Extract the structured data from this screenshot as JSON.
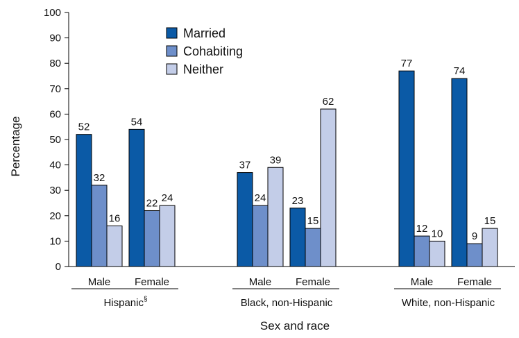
{
  "chart_data": {
    "type": "bar",
    "ylabel": "Percentage",
    "xlabel": "Sex and race",
    "ylim": [
      0,
      100
    ],
    "yticks": [
      0,
      10,
      20,
      30,
      40,
      50,
      60,
      70,
      80,
      90,
      100
    ],
    "legend_position": "top-center",
    "series": [
      {
        "name": "Married",
        "color": "#0b5aa6"
      },
      {
        "name": "Cohabiting",
        "color": "#6e8fca"
      },
      {
        "name": "Neither",
        "color": "#c3cde8"
      }
    ],
    "groups": [
      {
        "name": "Hispanic",
        "name_superscript": "§",
        "categories": [
          {
            "label": "Male",
            "values": [
              52,
              32,
              16
            ]
          },
          {
            "label": "Female",
            "values": [
              54,
              22,
              24
            ]
          }
        ]
      },
      {
        "name": "Black, non-Hispanic",
        "name_superscript": "",
        "categories": [
          {
            "label": "Male",
            "values": [
              37,
              24,
              39
            ]
          },
          {
            "label": "Female",
            "values": [
              23,
              15,
              62
            ]
          }
        ]
      },
      {
        "name": "White, non-Hispanic",
        "name_superscript": "",
        "categories": [
          {
            "label": "Male",
            "values": [
              77,
              12,
              10
            ]
          },
          {
            "label": "Female",
            "values": [
              74,
              9,
              15
            ]
          }
        ]
      }
    ]
  }
}
